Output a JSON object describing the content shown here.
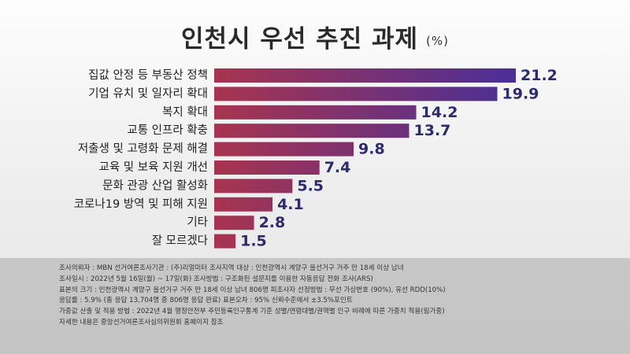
{
  "title": "인천시 우선 추진 과제",
  "unit": "(%)",
  "chart_data": {
    "type": "bar",
    "orientation": "horizontal",
    "categories": [
      "집값 안정 등 부동산 정책",
      "기업 유치 및 일자리 확대",
      "복지 확대",
      "교통 인프라 확충",
      "저출생 및 고령화 문제 해결",
      "교육 및 보육 지원 개선",
      "문화 관광 산업 활성화",
      "코로나19 방역 및 피해 지원",
      "기타",
      "잘 모르겠다"
    ],
    "values": [
      21.2,
      19.9,
      14.2,
      13.7,
      9.8,
      7.4,
      5.5,
      4.1,
      2.8,
      1.5
    ],
    "value_labels": [
      "21.2",
      "19.9",
      "14.2",
      "13.7",
      "9.8",
      "7.4",
      "5.5",
      "4.1",
      "2.8",
      "1.5"
    ],
    "xlim": [
      0,
      21.2
    ],
    "grid": false,
    "colors": {
      "bar_start": "#a8344f",
      "bar_end": "#4a2f96",
      "value_text": "#2e2a6e"
    }
  },
  "footer": {
    "lines": [
      "조사의뢰자 : MBN    선거여론조사기관 : (주)리얼미터    조사지역 대상 : 인천광역시 계양구 을선거구 거주 만 18세 이상 남녀",
      "조사일시 : 2022년 5월 16일(월) ~ 17일(화)    조사방법 : 구조화된 설문지를 이용한 자동응답 전화 조사(ARS)",
      "표본의 크기 : 인천광역시 계양구 을선거구 거주 만 18세 이상 남녀 806명    피조사자 선정방법 : 무선 가상번호 (90%), 유선 RDD(10%)",
      "응답률 : 5.9% (총 응답 13,704명 중 806명 응답 완료)    표본오차 : 95% 신뢰수준에서 ±3.5%포인트",
      "가중값 산출 및 적용 방법 : 2022년 4월 행정안전부 주민등록인구통계 기준 성별/연령대별/권역별 인구 비례에 따른 가중치 적용(림가중)",
      "자세한 내용은 중앙선거여론조사심의위원회 홈페이지 참조"
    ]
  }
}
